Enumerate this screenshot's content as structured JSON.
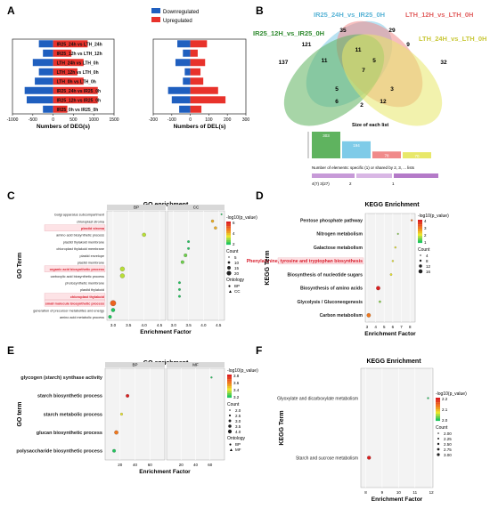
{
  "panels": {
    "A": "A",
    "B": "B",
    "C": "C",
    "D": "D",
    "E": "E",
    "F": "F"
  },
  "legend_a": {
    "down": "Downregulated",
    "up": "Upregulated",
    "down_color": "#1f5fbf",
    "up_color": "#e8322b"
  },
  "chart_data": [
    {
      "id": "A1",
      "type": "bar",
      "orientation": "horizontal",
      "xlabel": "Numbers of DEG(s)",
      "categories": [
        "IR25_0h vs IR25_0h",
        "IR25_12h vs IR25_0h",
        "IR25_24h vs IR25_0h",
        "LTH_0h vs LTH_0h",
        "LTH_12h vs LTH_0h",
        "LTH_24h vs LTH_0h",
        "IR25_12h vs LTH_12h",
        "IR25_24h vs LTH_24h"
      ],
      "xlim": [
        -1000,
        1500
      ],
      "xticks": [
        "-1000",
        "-500",
        "0",
        "500",
        "1000",
        "1500"
      ],
      "series": [
        {
          "name": "Downregulated",
          "values": [
            -250,
            -650,
            -700,
            -450,
            -350,
            -500,
            -250,
            -350
          ]
        },
        {
          "name": "Upregulated",
          "values": [
            350,
            1100,
            1100,
            750,
            600,
            750,
            450,
            850
          ]
        }
      ]
    },
    {
      "id": "A2",
      "type": "bar",
      "orientation": "horizontal",
      "xlabel": "Numbers of DEL(s)",
      "xlim": [
        -200,
        300
      ],
      "xticks": [
        "-200",
        "-100",
        "0",
        "100",
        "200",
        "300"
      ],
      "series": [
        {
          "name": "Downregulated",
          "values": [
            -60,
            -100,
            -120,
            -40,
            -30,
            -80,
            -40,
            -70
          ]
        },
        {
          "name": "Upregulated",
          "values": [
            60,
            190,
            150,
            70,
            55,
            80,
            40,
            90
          ]
        }
      ]
    },
    {
      "id": "B",
      "type": "venn",
      "sets": [
        "IR25_24H_vs_IR25_0H",
        "LTH_12H_vs_LTH_0H",
        "IR25_12H_vs_IR25_0H",
        "LTH_24H_vs_LTH_0H"
      ],
      "set_colors": [
        "#7ecbe8",
        "#f08a8a",
        "#5fb35f",
        "#e8e86a"
      ],
      "region_values": [
        "35",
        "29",
        "121",
        "11",
        "9",
        "137",
        "11",
        "5",
        "32",
        "7",
        "5",
        "3",
        "12",
        "2",
        "6"
      ],
      "upset_title": "Size of each list",
      "upset_values": [
        "303",
        "194",
        "78",
        "70"
      ],
      "upset_note": "Number of elements: specific (1) or shared by 2, 3, ... lists",
      "upset_bottom": [
        "4(7) 3(27)",
        "2",
        "1"
      ]
    },
    {
      "id": "C",
      "type": "scatter",
      "title": "GO enrichment",
      "facets": [
        "BP",
        "CC"
      ],
      "ylabel": "GO Term",
      "xlabel": "Enrichment Factor",
      "terms": [
        "Golgi apparatus subcompartment",
        "chloroplast stroma",
        "plastid stroma",
        "amino acid biosynthetic process",
        "plastid thylakoid membrane",
        "chloroplast thylakoid membrane",
        "plastid envelope",
        "plastid membrane",
        "organic acid biosynthetic process",
        "carboxylic acid biosynthetic process",
        "photosynthetic membrane",
        "plastid thylakoid",
        "chloroplast thylakoid",
        "small molecule biosynthetic process",
        "generation of precursor metabolites and energy",
        "amino acid metabolic process"
      ],
      "highlighted": [
        "plastid stroma",
        "organic acid biosynthetic process",
        "chloroplast thylakoid",
        "small molecule biosynthetic process"
      ],
      "xticks": [
        "3.0",
        "3.5",
        "4.0",
        "4.5"
      ],
      "legend_title": "-log10(p_value)",
      "legend_ticks": [
        "6",
        "4",
        "2"
      ],
      "size_title": "Count",
      "size_ticks": [
        "5",
        "10",
        "15",
        "20"
      ],
      "ontology_title": "Ontology",
      "ontology_items": [
        "BP",
        "CC"
      ],
      "points": [
        {
          "facet": "CC",
          "term": "Golgi apparatus subcompartment",
          "x": 4.6,
          "count": 3,
          "p": 2
        },
        {
          "facet": "CC",
          "term": "chloroplast stroma",
          "x": 4.3,
          "count": 8,
          "p": 4
        },
        {
          "facet": "CC",
          "term": "plastid stroma",
          "x": 4.4,
          "count": 8,
          "p": 4
        },
        {
          "facet": "BP",
          "term": "amino acid biosynthetic process",
          "x": 4.0,
          "count": 12,
          "p": 3
        },
        {
          "facet": "CC",
          "term": "plastid thylakoid membrane",
          "x": 3.5,
          "count": 6,
          "p": 2
        },
        {
          "facet": "CC",
          "term": "chloroplast thylakoid membrane",
          "x": 3.5,
          "count": 6,
          "p": 2
        },
        {
          "facet": "CC",
          "term": "plastid envelope",
          "x": 3.4,
          "count": 10,
          "p": 2.5
        },
        {
          "facet": "CC",
          "term": "plastid membrane",
          "x": 3.3,
          "count": 10,
          "p": 2.5
        },
        {
          "facet": "BP",
          "term": "organic acid biosynthetic process",
          "x": 3.3,
          "count": 15,
          "p": 3
        },
        {
          "facet": "BP",
          "term": "carboxylic acid biosynthetic process",
          "x": 3.3,
          "count": 15,
          "p": 3
        },
        {
          "facet": "CC",
          "term": "photosynthetic membrane",
          "x": 3.2,
          "count": 6,
          "p": 2
        },
        {
          "facet": "CC",
          "term": "plastid thylakoid",
          "x": 3.2,
          "count": 6,
          "p": 2
        },
        {
          "facet": "CC",
          "term": "chloroplast thylakoid",
          "x": 3.2,
          "count": 6,
          "p": 2
        },
        {
          "facet": "BP",
          "term": "small molecule biosynthetic process",
          "x": 3.0,
          "count": 20,
          "p": 5
        },
        {
          "facet": "BP",
          "term": "generation of precursor metabolites and energy",
          "x": 3.0,
          "count": 12,
          "p": 2
        },
        {
          "facet": "BP",
          "term": "amino acid metabolic process",
          "x": 2.9,
          "count": 10,
          "p": 2
        }
      ]
    },
    {
      "id": "D",
      "type": "scatter",
      "title": "KEGG Enrichment",
      "ylabel": "KEGG Term",
      "xlabel": "Enrichment Factor",
      "terms": [
        "Pentose phosphate pathway",
        "Nitrogen metabolism",
        "Galactose metabolism",
        "Phenylalanine, tyrosine and tryptophan biosynthesis",
        "Biosynthesis of nucleotide sugars",
        "Biosynthesis of amino acids",
        "Glycolysis / Gluconeogenesis",
        "Carbon metabolism"
      ],
      "highlighted": [
        "Phenylalanine, tyrosine and tryptophan biosynthesis"
      ],
      "xticks": [
        "3",
        "4",
        "5",
        "6",
        "7",
        "8"
      ],
      "legend_title": "-log10(p_value)",
      "legend_ticks": [
        "4",
        "3",
        "2",
        "1"
      ],
      "size_title": "Count",
      "size_ticks": [
        "4",
        "8",
        "12",
        "16"
      ],
      "points": [
        {
          "term": "Pentose phosphate pathway",
          "x": 8.2,
          "count": 4,
          "p": 3
        },
        {
          "term": "Nitrogen metabolism",
          "x": 6.6,
          "count": 3,
          "p": 1.5
        },
        {
          "term": "Galactose metabolism",
          "x": 6.3,
          "count": 4,
          "p": 2
        },
        {
          "term": "Phenylalanine, tyrosine and tryptophan biosynthesis",
          "x": 6.0,
          "count": 4,
          "p": 2
        },
        {
          "term": "Biosynthesis of nucleotide sugars",
          "x": 5.8,
          "count": 5,
          "p": 2
        },
        {
          "term": "Biosynthesis of amino acids",
          "x": 4.3,
          "count": 12,
          "p": 4
        },
        {
          "term": "Glycolysis / Gluconeogenesis",
          "x": 4.5,
          "count": 5,
          "p": 1.5
        },
        {
          "term": "Carbon metabolism",
          "x": 3.2,
          "count": 12,
          "p": 3
        }
      ]
    },
    {
      "id": "E",
      "type": "scatter",
      "title": "GO enrichment",
      "facets": [
        "BP",
        "MF"
      ],
      "ylabel": "GO term",
      "xlabel": "Enrichment Factor",
      "terms": [
        "glycogen (starch) synthase activity",
        "starch biosynthetic process",
        "starch metabolic process",
        "glucan biosynthetic process",
        "polysaccharide biosynthetic process"
      ],
      "xticks": [
        "20",
        "40",
        "60",
        "20",
        "40",
        "60"
      ],
      "legend_title": "-log10(p_value)",
      "legend_ticks": [
        "3.8",
        "3.6",
        "3.4",
        "3.2"
      ],
      "size_title": "Count",
      "size_ticks": [
        "2.0",
        "2.5",
        "3.0",
        "3.5",
        "4.0"
      ],
      "ontology_title": "Ontology",
      "ontology_items": [
        "BP",
        "MF"
      ],
      "points": [
        {
          "facet": "MF",
          "term": "glycogen (starch) synthase activity",
          "x": 62,
          "count": 2,
          "p": 3.2
        },
        {
          "facet": "BP",
          "term": "starch biosynthetic process",
          "x": 30,
          "count": 3,
          "p": 3.8
        },
        {
          "facet": "BP",
          "term": "starch metabolic process",
          "x": 22,
          "count": 2.5,
          "p": 3.4
        },
        {
          "facet": "BP",
          "term": "glucan biosynthetic process",
          "x": 15,
          "count": 3.5,
          "p": 3.6
        },
        {
          "facet": "BP",
          "term": "polysaccharide biosynthetic process",
          "x": 12,
          "count": 3,
          "p": 3.2
        }
      ]
    },
    {
      "id": "F",
      "type": "scatter",
      "title": "KEGG Enrichment",
      "ylabel": "KEGG Term",
      "xlabel": "Enrichment Factor",
      "terms": [
        "Glyoxylate and dicarboxylate metabolism",
        "Starch and sucrose metabolism"
      ],
      "xticks": [
        "8",
        "9",
        "10",
        "11",
        "12"
      ],
      "legend_title": "-log10(p_value)",
      "legend_ticks": [
        "2.2",
        "2.1",
        "2.0"
      ],
      "size_title": "Count",
      "size_ticks": [
        "2.00",
        "2.25",
        "2.50",
        "2.75",
        "3.00"
      ],
      "points": [
        {
          "term": "Glyoxylate and dicarboxylate metabolism",
          "x": 11.8,
          "count": 2,
          "p": 2.0
        },
        {
          "term": "Starch and sucrose metabolism",
          "x": 8.2,
          "count": 3,
          "p": 2.2
        }
      ]
    }
  ]
}
